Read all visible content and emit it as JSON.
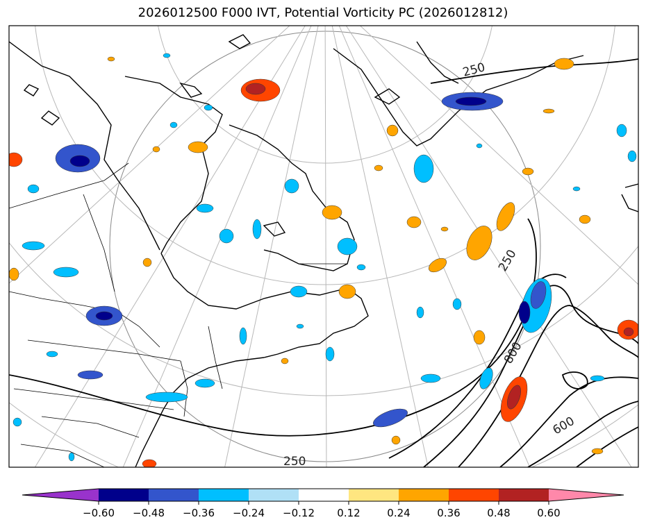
{
  "title": "2026012500 F000 IVT, Potential Vorticity PC (2026012812)",
  "colorbar": {
    "colors": [
      "#9933cc",
      "#00008b",
      "#3355cc",
      "#00bfff",
      "#b0e0f6",
      "#ffffff",
      "#ffe680",
      "#ffa500",
      "#ff4500",
      "#b22222",
      "#ff88aa"
    ],
    "tick_labels": [
      "−0.60",
      "−0.48",
      "−0.36",
      "−0.24",
      "−0.12",
      "0.12",
      "0.24",
      "0.36",
      "0.48",
      "0.60"
    ]
  },
  "contour_labels": [
    "250",
    "250",
    "250",
    "800",
    "600"
  ]
}
